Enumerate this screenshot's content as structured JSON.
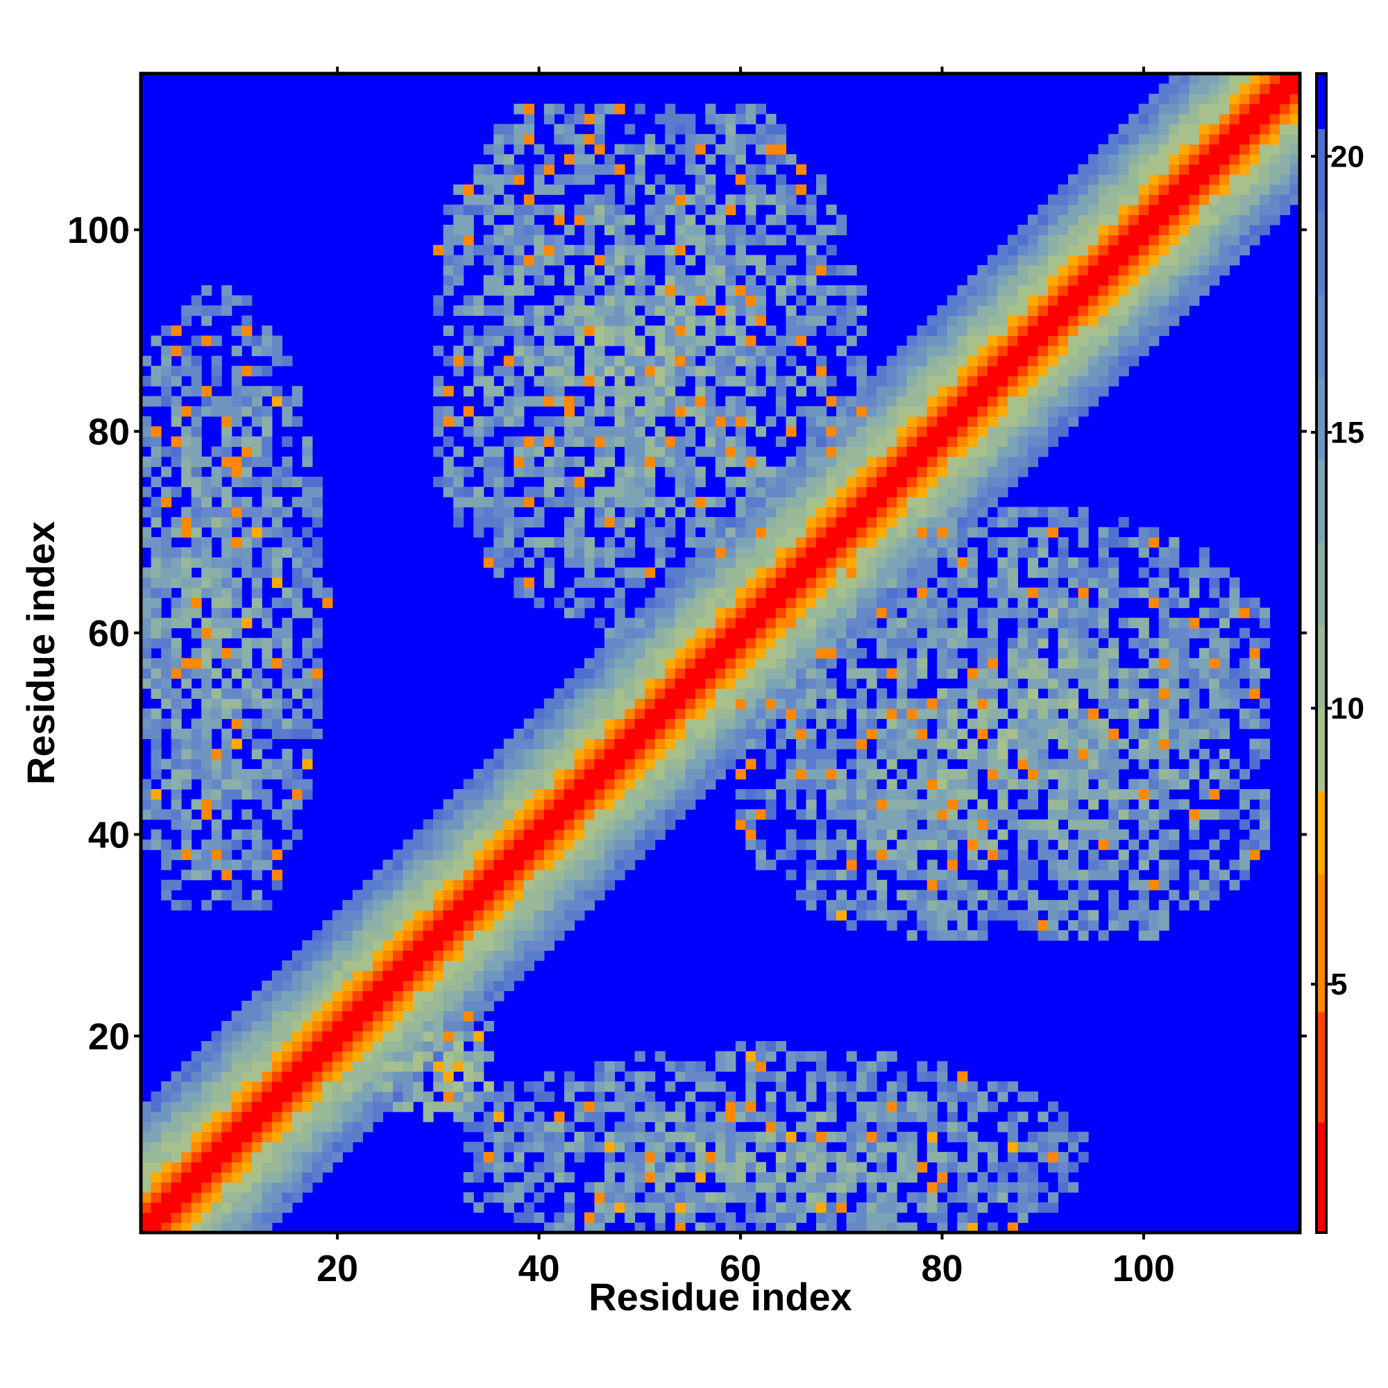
{
  "chart_data": {
    "type": "heatmap",
    "title": "",
    "xlabel": "Residue index",
    "ylabel": "Residue index",
    "n_residues": 115,
    "xlim": [
      1,
      115
    ],
    "ylim": [
      1,
      115
    ],
    "x_ticks": [
      20,
      40,
      60,
      80,
      100
    ],
    "y_ticks": [
      20,
      40,
      60,
      80,
      100
    ],
    "x_tick_labels": [
      "20",
      "40",
      "60",
      "80",
      "100"
    ],
    "y_tick_labels": [
      "20",
      "40",
      "60",
      "80",
      "100"
    ],
    "value_range": [
      0.5,
      21.5
    ],
    "colorbar_ticks": [
      5,
      10,
      15,
      20
    ],
    "colorbar_tick_labels": [
      "5",
      "10",
      "15",
      "20"
    ],
    "colorbar_position": "right",
    "colorscale": [
      {
        "max": 2.5,
        "color": "#ff0000"
      },
      {
        "max": 4.5,
        "color": "#ff4400"
      },
      {
        "max": 7.0,
        "color": "#ff8800"
      },
      {
        "max": 8.5,
        "color": "#ffaa00"
      },
      {
        "max": 10.0,
        "color": "#a8c08c"
      },
      {
        "max": 11.5,
        "color": "#98b898"
      },
      {
        "max": 13.0,
        "color": "#8cb0a8"
      },
      {
        "max": 14.5,
        "color": "#7da3b6"
      },
      {
        "max": 16.0,
        "color": "#7096c0"
      },
      {
        "max": 17.5,
        "color": "#6688c8"
      },
      {
        "max": 19.0,
        "color": "#5a7ccc"
      },
      {
        "max": 20.5,
        "color": "#5070d0"
      },
      {
        "max": 99,
        "color": "#0000ff"
      }
    ],
    "background_value": 21,
    "grid": false,
    "diagonal_band_profile": [
      {
        "offset": 0,
        "value": 1
      },
      {
        "offset": 1,
        "value": 2
      },
      {
        "offset": 2,
        "value": 3
      },
      {
        "offset": 3,
        "value": 6
      },
      {
        "offset": 4,
        "value": 8
      },
      {
        "offset": 5,
        "value": 9.5
      },
      {
        "offset": 6,
        "value": 10.5
      },
      {
        "offset": 7,
        "value": 11.5
      },
      {
        "offset": 8,
        "value": 13
      },
      {
        "offset": 9,
        "value": 14.5
      },
      {
        "offset": 10,
        "value": 16
      }
    ],
    "contact_regions": [
      {
        "name": "A",
        "x_range": [
          1,
          22
        ],
        "y_range": [
          33,
          95
        ],
        "center": [
          8,
          62
        ],
        "typical_value": 13,
        "min_value": 5.5
      },
      {
        "name": "A-mirror",
        "x_range": [
          33,
          95
        ],
        "y_range": [
          1,
          22
        ],
        "center": [
          62,
          8
        ],
        "typical_value": 13,
        "min_value": 5.5
      },
      {
        "name": "B",
        "x_range": [
          30,
          73
        ],
        "y_range": [
          58,
          112
        ],
        "center": [
          50,
          88
        ],
        "typical_value": 12.5,
        "min_value": 5
      },
      {
        "name": "B-mirror",
        "x_range": [
          58,
          112
        ],
        "y_range": [
          30,
          73
        ],
        "center": [
          88,
          50
        ],
        "typical_value": 12.5,
        "min_value": 5
      },
      {
        "name": "C",
        "x_range": [
          55,
          95
        ],
        "y_range": [
          30,
          60
        ],
        "center": [
          80,
          45
        ],
        "typical_value": 13,
        "min_value": 5.5
      },
      {
        "name": "D",
        "x_range": [
          100,
          112
        ],
        "y_range": [
          42,
          68
        ],
        "center": [
          105,
          55
        ],
        "typical_value": 16,
        "min_value": 15
      },
      {
        "name": "E",
        "x_range": [
          15,
          35
        ],
        "y_range": [
          12,
          22
        ],
        "center": [
          32,
          17
        ],
        "typical_value": 10,
        "min_value": 6
      }
    ]
  }
}
